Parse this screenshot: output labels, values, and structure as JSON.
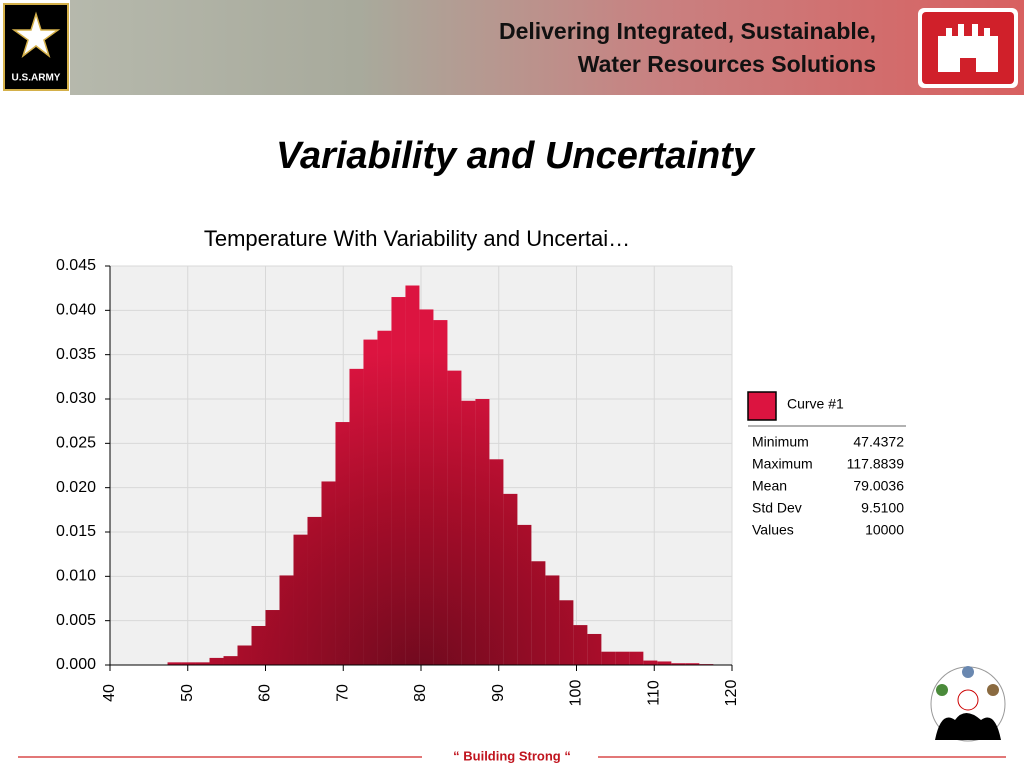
{
  "header": {
    "line1": "Delivering Integrated, Sustainable,",
    "line2": "Water Resources Solutions",
    "army_logo": "U.S.ARMY"
  },
  "slide_title": "Variability and Uncertainty",
  "footer": "“ Building  Strong “",
  "chart_data": {
    "type": "histogram",
    "title": "Temperature With Variability and Uncertai…",
    "bins": [
      47.4,
      49.2,
      51,
      52.8,
      54.6,
      56.4,
      58.2,
      60,
      61.8,
      63.6,
      65.4,
      67.2,
      69,
      70.8,
      72.6,
      74.4,
      76.2,
      78,
      79.8,
      81.6,
      83.4,
      85.2,
      87,
      88.8,
      90.6,
      92.4,
      94.2,
      96,
      97.8,
      99.6,
      101.4,
      103.2,
      105,
      106.8,
      108.6,
      110.4,
      112.2,
      114,
      115.8,
      117.6
    ],
    "values": [
      0.0003,
      0.0003,
      0.0003,
      0.0008,
      0.001,
      0.0022,
      0.0044,
      0.0062,
      0.0101,
      0.0147,
      0.0167,
      0.0207,
      0.0274,
      0.0334,
      0.0367,
      0.0377,
      0.0415,
      0.0428,
      0.0401,
      0.0389,
      0.0332,
      0.0298,
      0.03,
      0.0232,
      0.0193,
      0.0158,
      0.0117,
      0.0101,
      0.0073,
      0.0045,
      0.0035,
      0.0015,
      0.0015,
      0.0015,
      0.0005,
      0.0004,
      0.0002,
      0.0002,
      0.0001
    ],
    "color": "#c8102e",
    "xlim": [
      40,
      120
    ],
    "xticks": [
      40,
      50,
      60,
      70,
      80,
      90,
      100,
      110,
      120
    ],
    "ylim": [
      0,
      0.045
    ],
    "yticks": [
      {
        "value": 0,
        "label": "0.000"
      },
      0.005,
      {
        "value": 0.01,
        "label": "0.010"
      },
      0.015,
      {
        "value": 0.02,
        "label": "0.020"
      },
      0.025,
      {
        "value": 0.03,
        "label": "0.030"
      },
      0.035,
      {
        "value": 0.04,
        "label": "0.040"
      },
      0.045
    ],
    "grid": true,
    "legend": {
      "name": "Curve #1",
      "stats": [
        [
          "Minimum",
          "47.4372"
        ],
        [
          "Maximum",
          "117.8839"
        ],
        [
          "Mean",
          "79.0036"
        ],
        [
          "Std Dev",
          "9.5100"
        ],
        [
          "Values",
          "10000"
        ]
      ]
    }
  }
}
